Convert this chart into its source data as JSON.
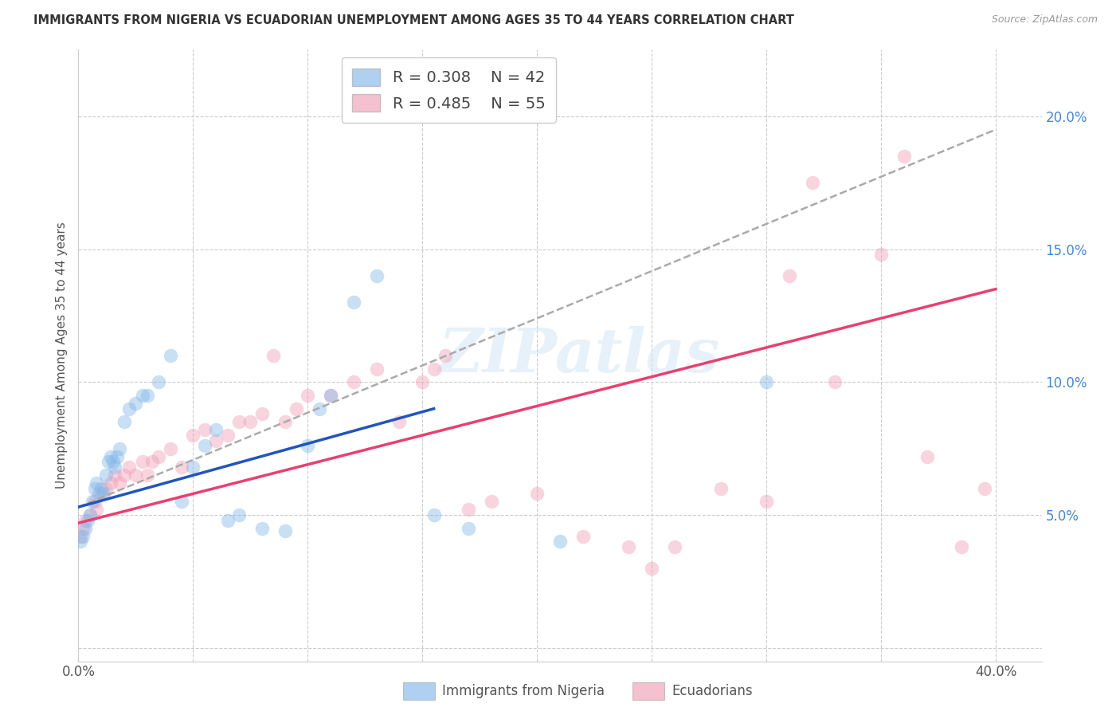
{
  "title": "IMMIGRANTS FROM NIGERIA VS ECUADORIAN UNEMPLOYMENT AMONG AGES 35 TO 44 YEARS CORRELATION CHART",
  "source": "Source: ZipAtlas.com",
  "ylabel": "Unemployment Among Ages 35 to 44 years",
  "xlim": [
    0.0,
    0.42
  ],
  "ylim": [
    -0.005,
    0.225
  ],
  "xticks": [
    0.0,
    0.05,
    0.1,
    0.15,
    0.2,
    0.25,
    0.3,
    0.35,
    0.4
  ],
  "yticks": [
    0.0,
    0.05,
    0.1,
    0.15,
    0.2
  ],
  "legend_R1": "R = 0.308",
  "legend_N1": "N = 42",
  "legend_R2": "R = 0.485",
  "legend_N2": "N = 55",
  "blue_color": "#85b8e8",
  "pink_color": "#f0a0b8",
  "blue_line_color": "#2255bb",
  "pink_line_color": "#e84070",
  "dashed_color": "#aaaaaa",
  "watermark_text": "ZIPatlas",
  "blue_x": [
    0.001,
    0.002,
    0.003,
    0.004,
    0.005,
    0.006,
    0.007,
    0.008,
    0.009,
    0.01,
    0.011,
    0.012,
    0.013,
    0.014,
    0.015,
    0.016,
    0.017,
    0.018,
    0.02,
    0.022,
    0.025,
    0.028,
    0.03,
    0.035,
    0.04,
    0.045,
    0.05,
    0.055,
    0.06,
    0.065,
    0.07,
    0.08,
    0.09,
    0.1,
    0.105,
    0.11,
    0.12,
    0.13,
    0.155,
    0.17,
    0.21,
    0.3
  ],
  "blue_y": [
    0.04,
    0.042,
    0.045,
    0.048,
    0.05,
    0.055,
    0.06,
    0.062,
    0.058,
    0.06,
    0.058,
    0.065,
    0.07,
    0.072,
    0.07,
    0.068,
    0.072,
    0.075,
    0.085,
    0.09,
    0.092,
    0.095,
    0.095,
    0.1,
    0.11,
    0.055,
    0.068,
    0.076,
    0.082,
    0.048,
    0.05,
    0.045,
    0.044,
    0.076,
    0.09,
    0.095,
    0.13,
    0.14,
    0.05,
    0.045,
    0.04,
    0.1
  ],
  "pink_x": [
    0.001,
    0.002,
    0.003,
    0.005,
    0.007,
    0.008,
    0.01,
    0.012,
    0.014,
    0.016,
    0.018,
    0.02,
    0.022,
    0.025,
    0.028,
    0.03,
    0.032,
    0.035,
    0.04,
    0.045,
    0.05,
    0.055,
    0.06,
    0.065,
    0.07,
    0.075,
    0.08,
    0.085,
    0.09,
    0.095,
    0.1,
    0.11,
    0.12,
    0.13,
    0.14,
    0.15,
    0.155,
    0.16,
    0.17,
    0.18,
    0.2,
    0.22,
    0.24,
    0.25,
    0.26,
    0.28,
    0.3,
    0.31,
    0.32,
    0.33,
    0.35,
    0.36,
    0.37,
    0.385,
    0.395
  ],
  "pink_y": [
    0.042,
    0.045,
    0.048,
    0.05,
    0.055,
    0.052,
    0.058,
    0.06,
    0.062,
    0.065,
    0.062,
    0.065,
    0.068,
    0.065,
    0.07,
    0.065,
    0.07,
    0.072,
    0.075,
    0.068,
    0.08,
    0.082,
    0.078,
    0.08,
    0.085,
    0.085,
    0.088,
    0.11,
    0.085,
    0.09,
    0.095,
    0.095,
    0.1,
    0.105,
    0.085,
    0.1,
    0.105,
    0.11,
    0.052,
    0.055,
    0.058,
    0.042,
    0.038,
    0.03,
    0.038,
    0.06,
    0.055,
    0.14,
    0.175,
    0.1,
    0.148,
    0.185,
    0.072,
    0.038,
    0.06
  ],
  "blue_fit_x": [
    0.0,
    0.155
  ],
  "blue_fit_y": [
    0.053,
    0.09
  ],
  "pink_fit_x": [
    0.0,
    0.4
  ],
  "pink_fit_y": [
    0.047,
    0.135
  ],
  "dashed_fit_x": [
    0.0,
    0.4
  ],
  "dashed_fit_y": [
    0.053,
    0.195
  ]
}
